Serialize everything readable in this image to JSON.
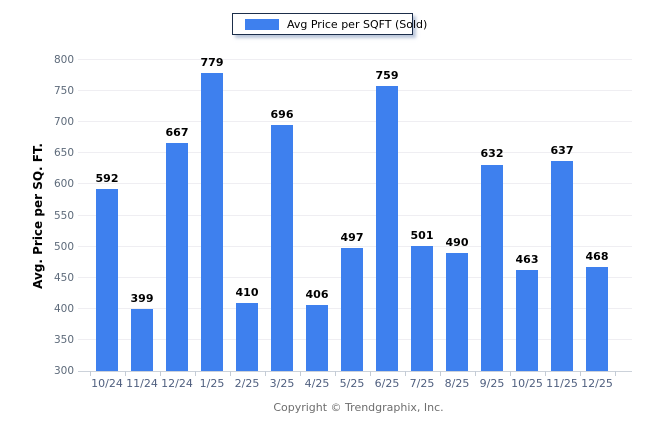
{
  "legend": {
    "label": "Avg Price per SQFT (Sold)",
    "swatch_color": "#3e80ee"
  },
  "y_axis": {
    "title": "Avg. Price per SQ. FT."
  },
  "footer": {
    "copyright": "Copyright © Trendgraphix, Inc."
  },
  "colors": {
    "bar": "#3e80ee",
    "gridline": "#efeef2",
    "axis_line": "#ccd2da",
    "x_label": "#4f5f7f",
    "y_label": "#5d6a7a",
    "value_label": "#000000",
    "copyright_text": "#6e6e6e",
    "legend_border": "#1c2e4a"
  },
  "chart_data": {
    "type": "bar",
    "categories": [
      "10/24",
      "11/24",
      "12/24",
      "1/25",
      "2/25",
      "3/25",
      "4/25",
      "5/25",
      "6/25",
      "7/25",
      "8/25",
      "9/25",
      "10/25",
      "11/25",
      "12/25"
    ],
    "values": [
      592,
      399,
      667,
      779,
      410,
      696,
      406,
      497,
      759,
      501,
      490,
      632,
      463,
      637,
      468
    ],
    "title": "",
    "xlabel": "",
    "ylabel": "Avg. Price per SQ. FT.",
    "ylim": [
      300,
      800
    ],
    "ytick_step": 50,
    "yticks": [
      300,
      350,
      400,
      450,
      500,
      550,
      600,
      650,
      700,
      750,
      800
    ],
    "grid": true,
    "legend": [
      "Avg Price per SQFT (Sold)"
    ],
    "legend_position": "top",
    "bar_color": "#3e80ee",
    "value_labels_shown": true
  }
}
